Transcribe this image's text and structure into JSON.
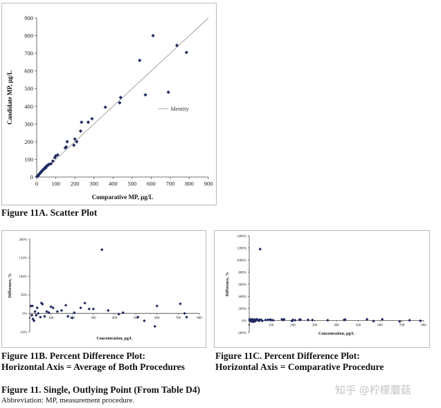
{
  "figure": {
    "caption_a": "Figure 11A. Scatter Plot",
    "caption_b_line1": "Figure 11B. Percent Difference Plot:",
    "caption_b_line2": "Horizontal Axis = Average of Both Procedures",
    "caption_c_line1": "Figure 11C. Percent Difference Plot:",
    "caption_c_line2": "Horizontal Axis = Comparative Procedure",
    "title": "Figure 11. Single, Outlying Point (From Table D4)",
    "abbreviation": "Abbreviation: MP, measurement procedure."
  },
  "watermark": {
    "text": "知乎 @柠檬蘑菇"
  },
  "colors": {
    "marker": "#1f2a60",
    "line": "#9a9a9a",
    "axis": "#444444"
  },
  "chart_data": [
    {
      "id": "A",
      "type": "scatter",
      "title": "",
      "xlabel": "Comparative MP, µg/L",
      "ylabel": "Candidate MP, µg/L",
      "xlim": [
        0,
        900
      ],
      "ylim": [
        0,
        900
      ],
      "xticks": [
        0,
        100,
        200,
        300,
        400,
        500,
        600,
        700,
        800,
        900
      ],
      "yticks": [
        0,
        100,
        200,
        300,
        400,
        500,
        600,
        700,
        800,
        900
      ],
      "tick_labels": [
        "0",
        "100",
        "200",
        "300",
        "400",
        "500",
        "600",
        "700",
        "800",
        "900"
      ],
      "legend": [
        {
          "name": "Identity",
          "type": "line"
        }
      ],
      "identity_line": [
        [
          0,
          0
        ],
        [
          900,
          900
        ]
      ],
      "points": [
        [
          2,
          3
        ],
        [
          5,
          6
        ],
        [
          8,
          8
        ],
        [
          10,
          12
        ],
        [
          12,
          15
        ],
        [
          15,
          18
        ],
        [
          18,
          22
        ],
        [
          20,
          25
        ],
        [
          22,
          28
        ],
        [
          25,
          30
        ],
        [
          28,
          35
        ],
        [
          30,
          38
        ],
        [
          32,
          40
        ],
        [
          35,
          42
        ],
        [
          38,
          45
        ],
        [
          42,
          50
        ],
        [
          45,
          55
        ],
        [
          48,
          52
        ],
        [
          50,
          60
        ],
        [
          55,
          65
        ],
        [
          60,
          68
        ],
        [
          65,
          72
        ],
        [
          75,
          75
        ],
        [
          85,
          90
        ],
        [
          95,
          110
        ],
        [
          100,
          120
        ],
        [
          110,
          125
        ],
        [
          150,
          165
        ],
        [
          155,
          170
        ],
        [
          160,
          200
        ],
        [
          195,
          180
        ],
        [
          200,
          215
        ],
        [
          210,
          200
        ],
        [
          230,
          260
        ],
        [
          235,
          310
        ],
        [
          270,
          310
        ],
        [
          290,
          330
        ],
        [
          360,
          395
        ],
        [
          435,
          420
        ],
        [
          440,
          450
        ],
        [
          540,
          660
        ],
        [
          570,
          465
        ],
        [
          610,
          800
        ],
        [
          690,
          480
        ],
        [
          735,
          745
        ],
        [
          785,
          705
        ]
      ]
    },
    {
      "id": "B",
      "type": "scatter",
      "title": "",
      "xlabel": "Concentration, µg/L",
      "ylabel": "Difference, %",
      "xlim": [
        0,
        800
      ],
      "ylim": [
        -50,
        200
      ],
      "xticks": [
        0,
        100,
        200,
        300,
        400,
        500,
        600,
        700,
        800
      ],
      "xtick_labels": [
        "0",
        "100",
        "200",
        "300",
        "400",
        "500",
        "600",
        "700",
        "800"
      ],
      "yticks": [
        -50,
        0,
        50,
        100,
        150,
        200
      ],
      "ytick_labels": [
        "-50%",
        "0%",
        "50%",
        "100%",
        "150%",
        "200%"
      ],
      "points": [
        [
          5,
          20
        ],
        [
          10,
          -5
        ],
        [
          12,
          20
        ],
        [
          15,
          -15
        ],
        [
          20,
          -20
        ],
        [
          25,
          5
        ],
        [
          30,
          -5
        ],
        [
          35,
          15
        ],
        [
          40,
          0
        ],
        [
          50,
          -10
        ],
        [
          55,
          28
        ],
        [
          60,
          25
        ],
        [
          70,
          -8
        ],
        [
          80,
          5
        ],
        [
          90,
          2
        ],
        [
          100,
          18
        ],
        [
          110,
          15
        ],
        [
          130,
          5
        ],
        [
          150,
          8
        ],
        [
          170,
          22
        ],
        [
          180,
          -8
        ],
        [
          200,
          -12
        ],
        [
          210,
          2
        ],
        [
          240,
          15
        ],
        [
          260,
          28
        ],
        [
          280,
          12
        ],
        [
          300,
          12
        ],
        [
          340,
          172
        ],
        [
          370,
          8
        ],
        [
          420,
          -2
        ],
        [
          440,
          2
        ],
        [
          510,
          -10
        ],
        [
          540,
          -20
        ],
        [
          590,
          -35
        ],
        [
          600,
          20
        ],
        [
          710,
          26
        ],
        [
          730,
          0
        ],
        [
          740,
          -10
        ]
      ]
    },
    {
      "id": "C",
      "type": "scatter",
      "title": "",
      "xlabel": "Concentration, µg/L",
      "ylabel": "Difference, %",
      "xlim": [
        0,
        800
      ],
      "ylim": [
        -200,
        1400
      ],
      "xticks": [
        0,
        100,
        200,
        300,
        400,
        500,
        600,
        700,
        800
      ],
      "xtick_labels": [
        "0",
        "100",
        "200",
        "300",
        "400",
        "500",
        "600",
        "700",
        "800"
      ],
      "yticks": [
        -200,
        0,
        200,
        400,
        600,
        800,
        1000,
        1200,
        1400
      ],
      "ytick_labels": [
        "-200%",
        "0%",
        "200%",
        "400%",
        "600%",
        "800%",
        "1000%",
        "1200%",
        "1400%"
      ],
      "points": [
        [
          2,
          20
        ],
        [
          5,
          -10
        ],
        [
          8,
          15
        ],
        [
          10,
          5
        ],
        [
          12,
          -15
        ],
        [
          15,
          20
        ],
        [
          18,
          10
        ],
        [
          20,
          -20
        ],
        [
          22,
          5
        ],
        [
          25,
          15
        ],
        [
          28,
          -10
        ],
        [
          30,
          10
        ],
        [
          35,
          20
        ],
        [
          40,
          5
        ],
        [
          45,
          -5
        ],
        [
          48,
          15
        ],
        [
          50,
          1180
        ],
        [
          55,
          10
        ],
        [
          60,
          -5
        ],
        [
          75,
          8
        ],
        [
          85,
          12
        ],
        [
          95,
          15
        ],
        [
          100,
          10
        ],
        [
          110,
          5
        ],
        [
          150,
          20
        ],
        [
          155,
          10
        ],
        [
          160,
          18
        ],
        [
          195,
          -5
        ],
        [
          200,
          10
        ],
        [
          210,
          5
        ],
        [
          230,
          12
        ],
        [
          235,
          15
        ],
        [
          270,
          10
        ],
        [
          290,
          8
        ],
        [
          360,
          5
        ],
        [
          435,
          10
        ],
        [
          440,
          15
        ],
        [
          540,
          20
        ],
        [
          570,
          -10
        ],
        [
          610,
          20
        ],
        [
          690,
          -15
        ],
        [
          735,
          5
        ],
        [
          785,
          -5
        ]
      ]
    }
  ]
}
